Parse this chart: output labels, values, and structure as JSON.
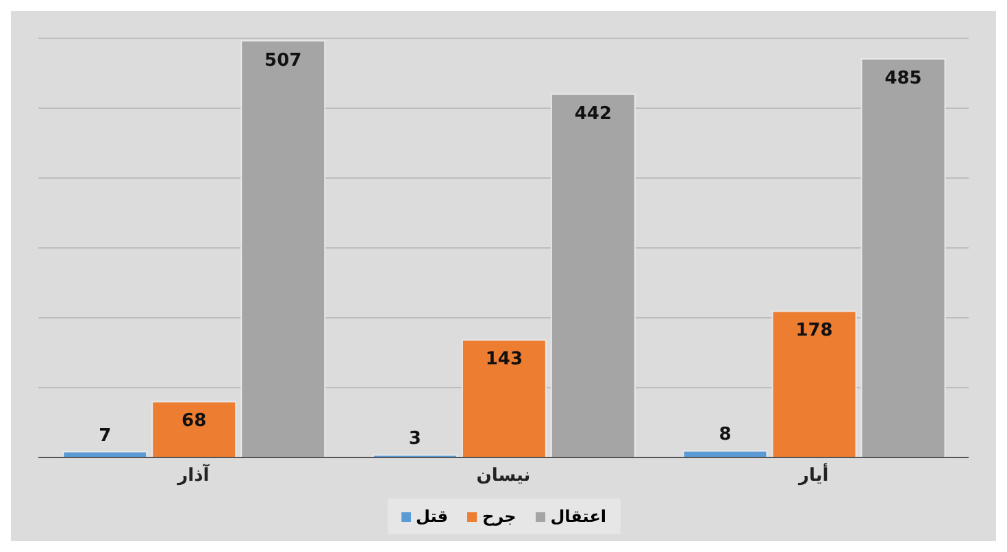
{
  "chart_data": {
    "type": "bar",
    "categories": [
      "آذار",
      "نيسان",
      "أيار"
    ],
    "series": [
      {
        "name": "قتل",
        "color": "#5b9bd5",
        "values": [
          7,
          3,
          8
        ]
      },
      {
        "name": "جرح",
        "color": "#ed7d31",
        "values": [
          68,
          143,
          178
        ]
      },
      {
        "name": "اعتقال",
        "color": "#a5a5a5",
        "values": [
          507,
          442,
          485
        ]
      }
    ],
    "grid": "y",
    "data_labels": true,
    "legend": "bottom",
    "tick_labels": "x"
  }
}
